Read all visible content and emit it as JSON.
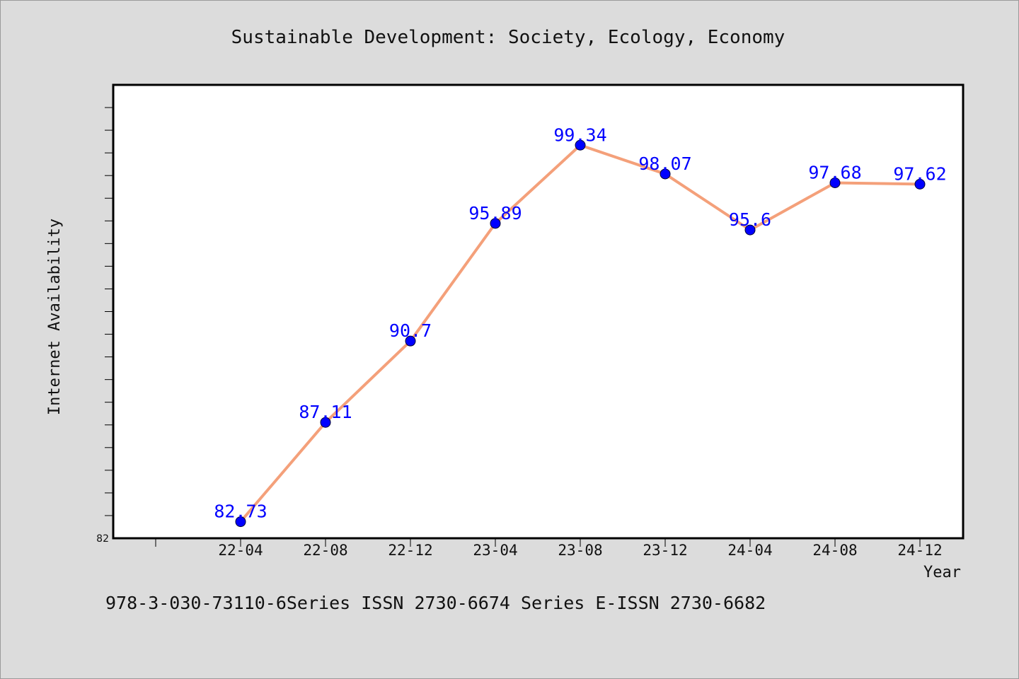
{
  "chart_data": {
    "type": "line",
    "title": "Sustainable Development: Society, Ecology, Economy",
    "xlabel": "Year",
    "ylabel": "Internet Availability",
    "categories": [
      "22-04",
      "22-08",
      "22-12",
      "23-04",
      "23-08",
      "23-12",
      "24-04",
      "24-08",
      "24-12"
    ],
    "series": [
      {
        "values": [
          82.73,
          87.11,
          90.7,
          95.89,
          99.34,
          98.07,
          95.6,
          97.68,
          97.62
        ]
      }
    ],
    "data_labels": [
      "82.73",
      "87.11",
      "90.7",
      "95.89",
      "99.34",
      "98.07",
      "95.6",
      "97.68",
      "97.62"
    ],
    "y_tick_labels": [
      "82"
    ],
    "ylim": [
      82,
      102
    ],
    "y_minor_tick_step": 1,
    "grid": false,
    "line_color": "#f4a07a",
    "marker_color": "#0000ff",
    "label_color": "#0000ff",
    "background": "#dcdcdc",
    "plot_background": "#ffffff"
  },
  "footer": {
    "text": "978-3-030-73110-6Series ISSN 2730-6674 Series E-ISSN 2730-6682"
  }
}
